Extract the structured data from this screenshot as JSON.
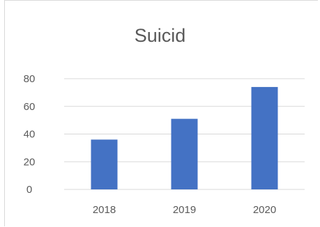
{
  "chart_data": {
    "type": "bar",
    "title": "Suicid",
    "categories": [
      "2018",
      "2019",
      "2020"
    ],
    "values": [
      36,
      51,
      74
    ],
    "ylim": [
      0,
      80
    ],
    "yticks": [
      "0",
      "20",
      "40",
      "60",
      "80"
    ],
    "grid": true,
    "legend": "none",
    "bar_color": "#4472c4",
    "grid_color": "#d9d9d9",
    "text_color": "#595959"
  }
}
